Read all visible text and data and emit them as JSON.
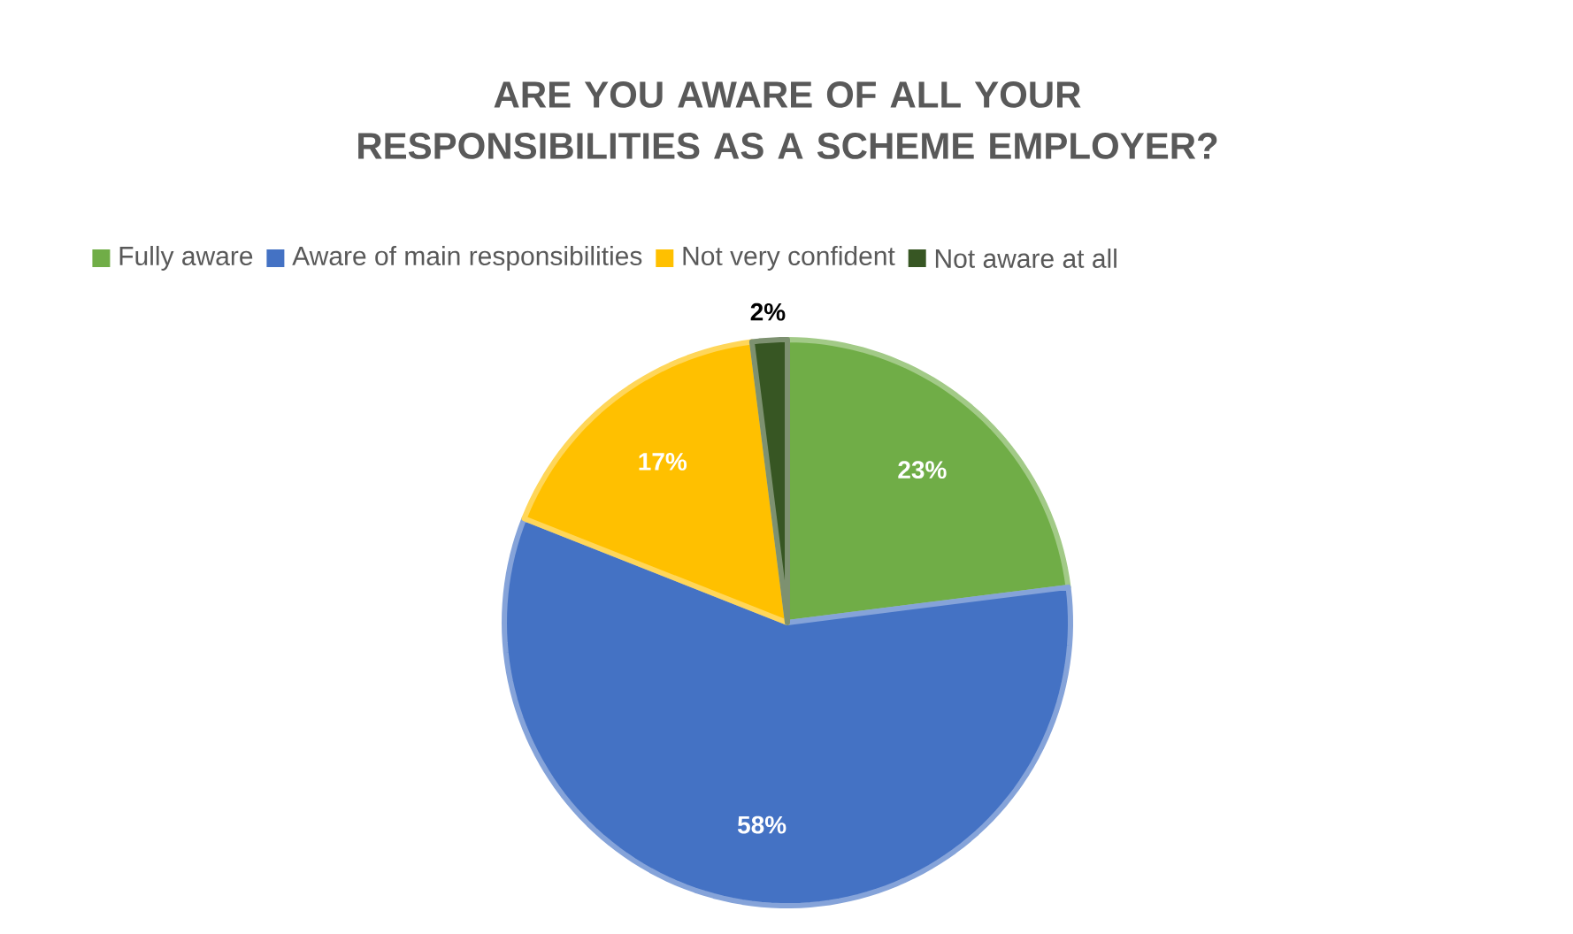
{
  "chart_data": {
    "type": "pie",
    "title": "ARE YOU AWARE OF ALL YOUR RESPONSIBILITIES AS A SCHEME EMPLOYER?",
    "categories": [
      "Fully aware",
      "Aware of main responsibilities",
      "Not very confident",
      "Not aware at all"
    ],
    "values": [
      23,
      58,
      17,
      2
    ],
    "colors": [
      "#70ad47",
      "#4472c4",
      "#ffc000",
      "#375623"
    ],
    "value_labels": [
      "23%",
      "58%",
      "17%",
      "2%"
    ],
    "legend": "top"
  }
}
